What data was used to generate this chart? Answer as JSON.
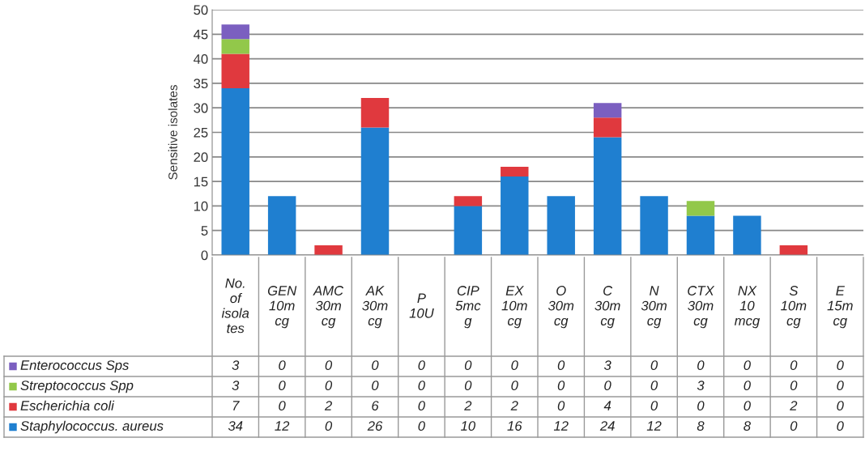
{
  "chart_data": {
    "type": "bar",
    "stacked": true,
    "ylabel": "Sensitive isolates",
    "categories": [
      "No.\nof\nisola\ntes",
      "GEN\n10m\ncg",
      "AMC\n30m\ncg",
      "AK\n30m\ncg",
      "P\n10U",
      "CIP\n5mc\ng",
      "EX\n10m\ncg",
      "O\n30m\ncg",
      "C\n30m\ncg",
      "N\n30m\ncg",
      "CTX\n30m\ncg",
      "NX\n10\nmcg",
      "S\n10m\ncg",
      "E\n15m\ncg"
    ],
    "series": [
      {
        "name": "Staphylococcus. aureus",
        "color": "#1f7fd0",
        "values": [
          34,
          12,
          0,
          26,
          0,
          10,
          16,
          12,
          24,
          12,
          8,
          8,
          0,
          0
        ]
      },
      {
        "name": "Escherichia coli",
        "color": "#e0393e",
        "values": [
          7,
          0,
          2,
          6,
          0,
          2,
          2,
          0,
          4,
          0,
          0,
          0,
          2,
          0
        ]
      },
      {
        "name": "Streptococcus Spp",
        "color": "#92c84a",
        "values": [
          3,
          0,
          0,
          0,
          0,
          0,
          0,
          0,
          0,
          0,
          3,
          0,
          0,
          0
        ]
      },
      {
        "name": "Enterococcus Sps",
        "color": "#7b5fc0",
        "values": [
          3,
          0,
          0,
          0,
          0,
          0,
          0,
          0,
          3,
          0,
          0,
          0,
          0,
          0
        ]
      }
    ],
    "ylim": [
      0,
      50
    ],
    "yticks": [
      0,
      5,
      10,
      15,
      20,
      25,
      30,
      35,
      40,
      45,
      50
    ],
    "grid": "y",
    "data_labels": true,
    "legend": "bottom left"
  }
}
